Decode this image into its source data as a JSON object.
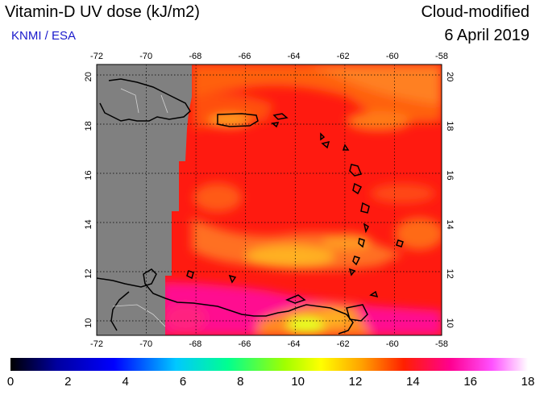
{
  "header": {
    "title": "Vitamin-D UV dose (kJ/m2)",
    "provider": "KNMI / ESA",
    "product": "Cloud-modified",
    "date": "6 April 2019"
  },
  "map": {
    "lon_ticks": [
      "-72",
      "-70",
      "-68",
      "-66",
      "-64",
      "-62",
      "-60",
      "-58"
    ],
    "lat_ticks": [
      "10",
      "12",
      "14",
      "16",
      "18",
      "20"
    ],
    "lon_range": [
      -72,
      -58
    ],
    "lat_range": [
      9.5,
      20.5
    ],
    "no_data_color": "#808080",
    "grid": "dotted"
  },
  "colorbar": {
    "labels": [
      "0",
      "2",
      "4",
      "6",
      "8",
      "10",
      "12",
      "14",
      "16",
      "18"
    ],
    "min": 0,
    "max": 18,
    "stops": [
      "#000000",
      "#0000a0",
      "#0000ff",
      "#00a0ff",
      "#00ffb0",
      "#80ff00",
      "#ffff00",
      "#ffa000",
      "#ff3000",
      "#ff00a0",
      "#ff60ff",
      "#ffffff"
    ]
  }
}
